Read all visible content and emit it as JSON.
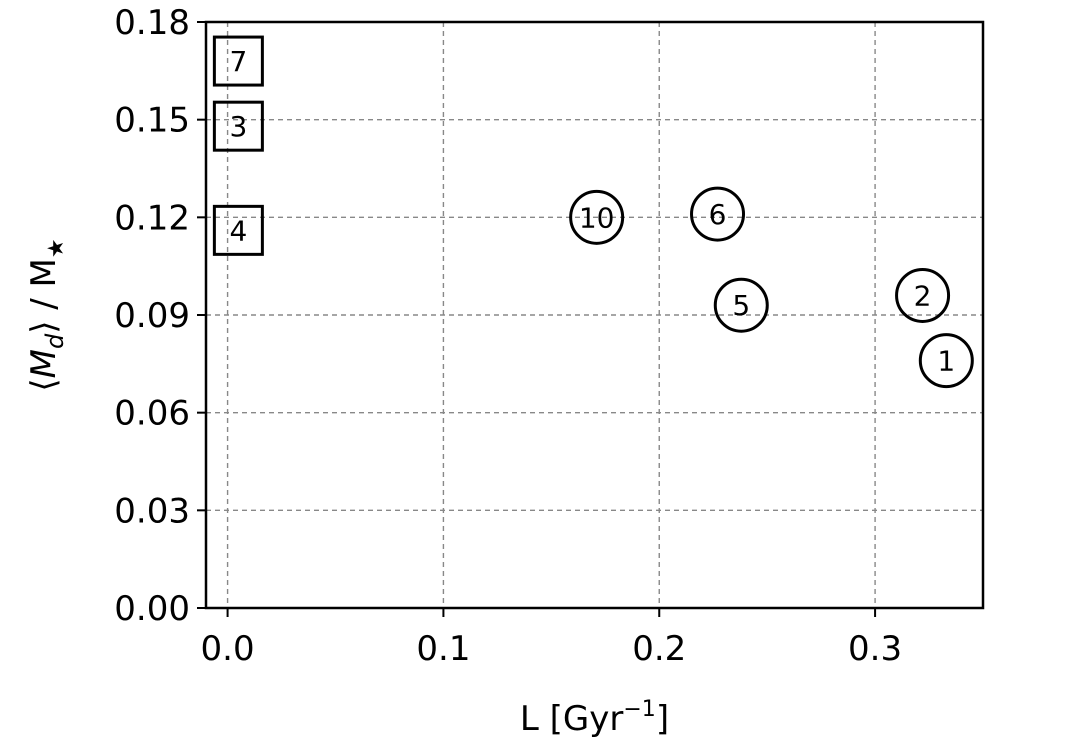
{
  "chart_data": {
    "type": "scatter",
    "xlabel": "L [Gyr",
    "xlabel_sup": "−1",
    "xlabel_close": "]",
    "ylabel_parts": [
      "⟨",
      "M",
      "d",
      "⟩ / M",
      "★"
    ],
    "xlim": [
      -0.01,
      0.35
    ],
    "ylim": [
      0.0,
      0.18
    ],
    "xticks": [
      0.0,
      0.1,
      0.2,
      0.3
    ],
    "xtick_labels": [
      "0.0",
      "0.1",
      "0.2",
      "0.3"
    ],
    "yticks": [
      0.0,
      0.03,
      0.06,
      0.09,
      0.12,
      0.15,
      0.18
    ],
    "ytick_labels": [
      "0.00",
      "0.03",
      "0.06",
      "0.09",
      "0.12",
      "0.15",
      "0.18"
    ],
    "grid": true,
    "points": [
      {
        "label": "7",
        "x": 0.005,
        "y": 0.168,
        "marker": "square"
      },
      {
        "label": "3",
        "x": 0.005,
        "y": 0.148,
        "marker": "square"
      },
      {
        "label": "4",
        "x": 0.005,
        "y": 0.116,
        "marker": "square"
      },
      {
        "label": "10",
        "x": 0.171,
        "y": 0.12,
        "marker": "circle"
      },
      {
        "label": "6",
        "x": 0.227,
        "y": 0.121,
        "marker": "circle"
      },
      {
        "label": "5",
        "x": 0.238,
        "y": 0.093,
        "marker": "circle"
      },
      {
        "label": "2",
        "x": 0.322,
        "y": 0.096,
        "marker": "circle"
      },
      {
        "label": "1",
        "x": 0.333,
        "y": 0.076,
        "marker": "circle"
      }
    ]
  }
}
